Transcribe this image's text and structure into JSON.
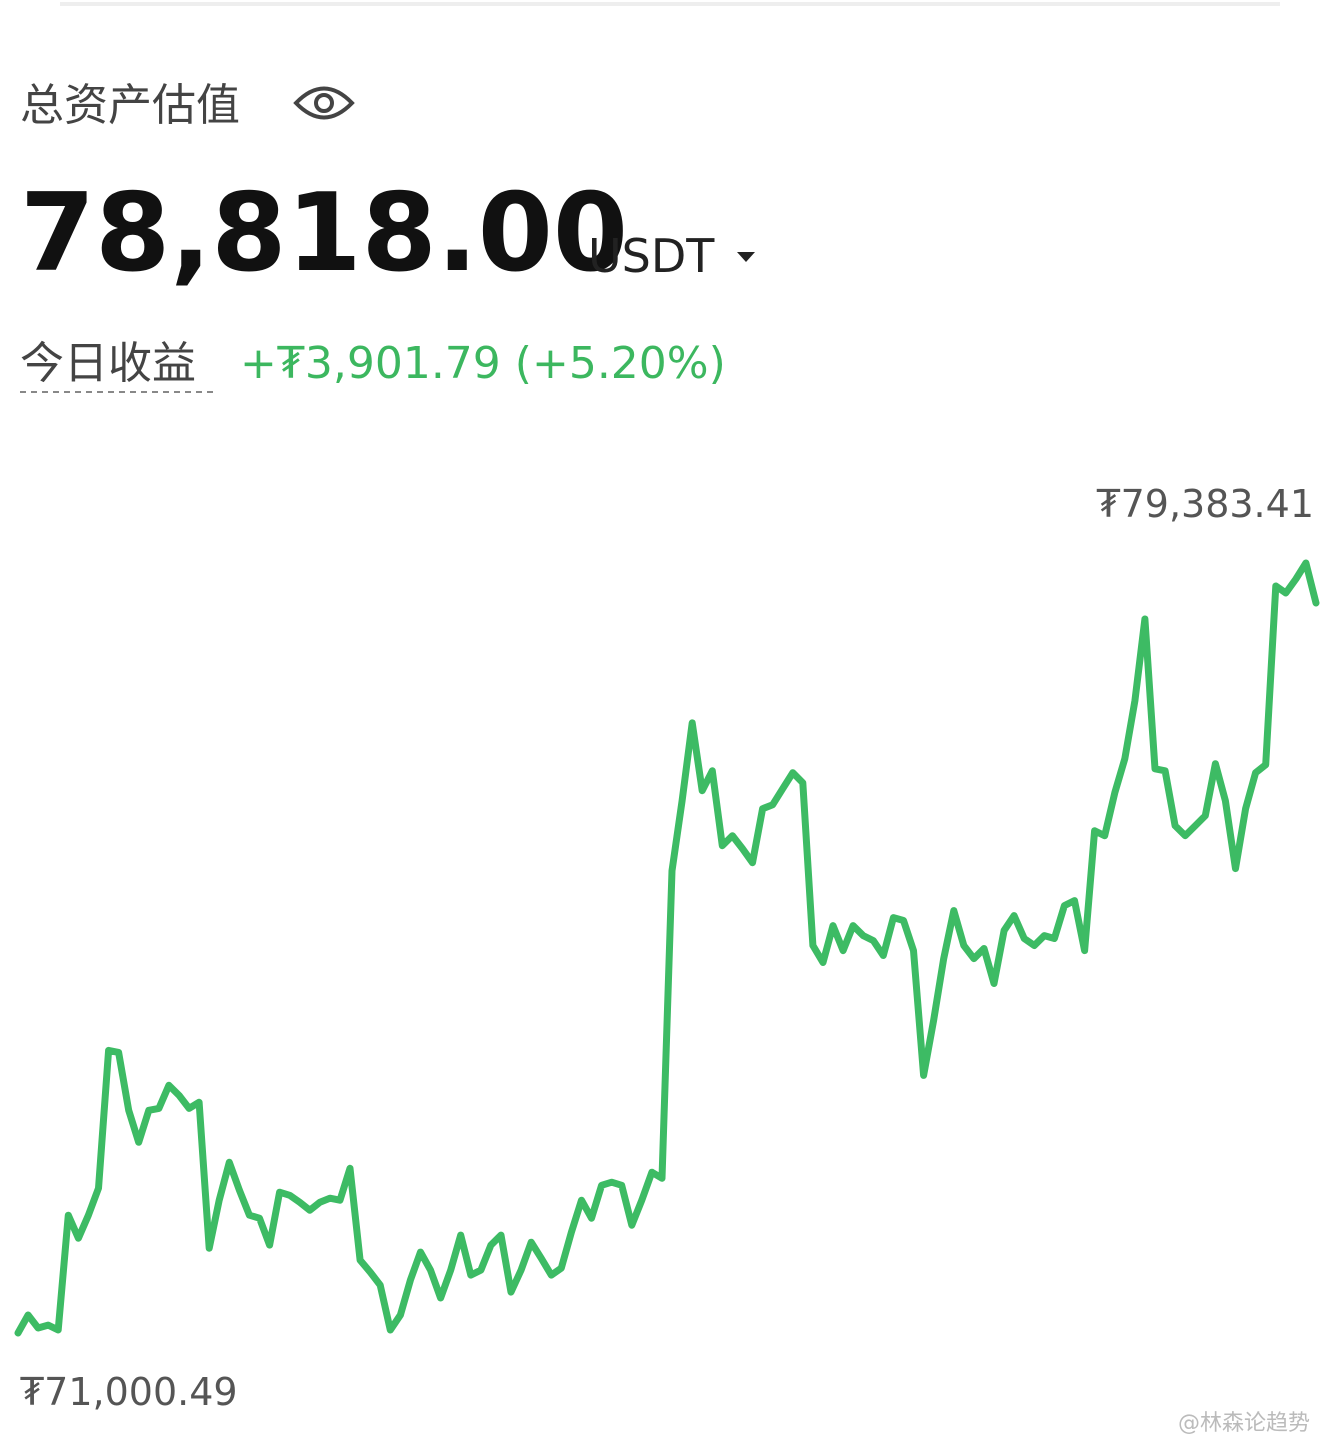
{
  "header": {
    "title": "总资产估值",
    "balance": "78,818.00",
    "currency": "USDT",
    "pnl_label": "今日收益",
    "pnl_value": "+₮3,901.79 (+5.20%)"
  },
  "chart_data": {
    "type": "line",
    "color": "#3dbb64",
    "values": [
      71000.49,
      71196,
      71055,
      71087,
      71033,
      72283,
      72033,
      72283,
      72577,
      74077,
      74055,
      73425,
      73077,
      73425,
      73446,
      73697,
      73588,
      73446,
      73512,
      71924,
      72446,
      72859,
      72555,
      72283,
      72250,
      71957,
      72533,
      72500,
      72424,
      72337,
      72424,
      72468,
      72446,
      72794,
      71794,
      71663,
      71522,
      71033,
      71196,
      71576,
      71881,
      71685,
      71381,
      71685,
      72066,
      71631,
      71685,
      71957,
      72066,
      71446,
      71685,
      71989,
      71815,
      71631,
      71707,
      72098,
      72446,
      72250,
      72609,
      72642,
      72609,
      72174,
      72446,
      72751,
      72685,
      76034,
      76795,
      77643,
      76904,
      77121,
      76306,
      76415,
      76273,
      76121,
      76708,
      76752,
      76926,
      77100,
      76991,
      75219,
      75034,
      75436,
      75164,
      75436,
      75327,
      75273,
      75110,
      75523,
      75491,
      75164,
      73805,
      74403,
      75077,
      75599,
      75219,
      75077,
      75186,
      74806,
      75382,
      75545,
      75295,
      75219,
      75327,
      75295,
      75654,
      75708,
      75164,
      76469,
      76415,
      76882,
      77252,
      77883,
      78774,
      77143,
      77121,
      76523,
      76415,
      76523,
      76632,
      77198,
      76795,
      76056,
      76708,
      77100,
      77187,
      79133,
      79057,
      79209,
      79383.41,
      78948
    ],
    "annotations": [
      {
        "value": 71000.49,
        "label": "₮71,000.49"
      },
      {
        "value": 79383.41,
        "label": "₮79,383.41"
      }
    ]
  },
  "watermark": "@林森论趋势"
}
